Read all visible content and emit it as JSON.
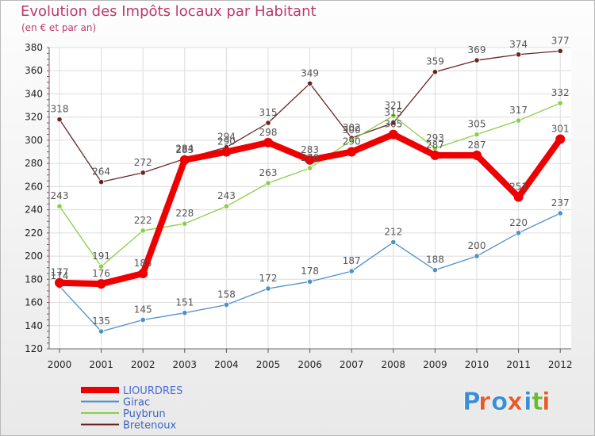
{
  "header": {
    "title": "Evolution des Impôts locaux par Habitant",
    "subtitle": "(en € et par an)"
  },
  "logo": {
    "text": "Proxiti",
    "letter_colors": [
      "#3a8ed8",
      "#e85a2a",
      "#3a8ed8",
      "#e85a2a",
      "#3a8ed8",
      "#6cb83a",
      "#e85a2a"
    ]
  },
  "chart_data": {
    "type": "line",
    "title": "Evolution des Impôts locaux par Habitant",
    "subtitle": "(en € et par an)",
    "xlabel": "",
    "ylabel": "",
    "ylim": [
      120,
      380
    ],
    "yticks": [
      120,
      140,
      160,
      180,
      200,
      220,
      240,
      260,
      280,
      300,
      320,
      340,
      360,
      380
    ],
    "x": [
      "2000",
      "2001",
      "2002",
      "2003",
      "2004",
      "2005",
      "2006",
      "2007",
      "2008",
      "2009",
      "2010",
      "2011",
      "2012"
    ],
    "grid": true,
    "legend_position": "bottom-left",
    "series": [
      {
        "name": "Bretenoux",
        "color": "#6b2424",
        "values": [
          318,
          264,
          272,
          284,
          294,
          315,
          349,
          302,
          315,
          359,
          369,
          374,
          377
        ]
      },
      {
        "name": "Puybrun",
        "color": "#88d048",
        "values": [
          243,
          191,
          222,
          228,
          243,
          263,
          276,
          300,
          321,
          293,
          305,
          317,
          332
        ]
      },
      {
        "name": "Girac",
        "color": "#4e90c8",
        "values": [
          174,
          135,
          145,
          151,
          158,
          172,
          178,
          187,
          212,
          188,
          200,
          220,
          237
        ]
      },
      {
        "name": "LIOURDRES",
        "color": "#ee0000",
        "values": [
          177,
          176,
          185,
          283,
          290,
          298,
          283,
          290,
          305,
          287,
          287,
          251,
          301
        ]
      }
    ],
    "legend": [
      "LIOURDRES",
      "Girac",
      "Puybrun",
      "Bretenoux"
    ]
  }
}
